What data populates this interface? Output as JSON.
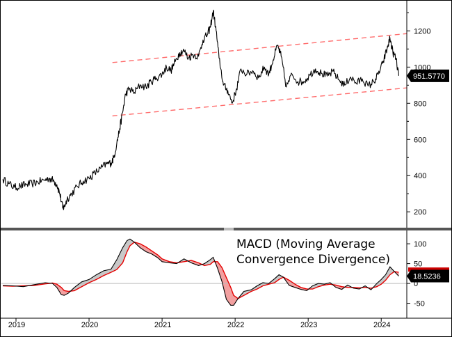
{
  "chart_data": {
    "type": "line",
    "x_range": [
      2018.8,
      2024.35
    ],
    "year_labels": [
      {
        "x": 2019.0,
        "label": "2019"
      },
      {
        "x": 2020.0,
        "label": "2020"
      },
      {
        "x": 2021.0,
        "label": "2021"
      },
      {
        "x": 2022.0,
        "label": "2022"
      },
      {
        "x": 2023.0,
        "label": "2023"
      },
      {
        "x": 2024.0,
        "label": "2024"
      }
    ],
    "price": {
      "ylim": [
        120,
        1340
      ],
      "yticks": [
        200,
        400,
        600,
        800,
        1000,
        1200
      ],
      "last_value_label": "951.5770",
      "last_value": 951.58,
      "series": [
        {
          "name": "Price",
          "points": [
            [
              2018.82,
              380
            ],
            [
              2018.9,
              355
            ],
            [
              2018.98,
              335
            ],
            [
              2019.06,
              342
            ],
            [
              2019.14,
              352
            ],
            [
              2019.22,
              355
            ],
            [
              2019.3,
              365
            ],
            [
              2019.38,
              375
            ],
            [
              2019.46,
              385
            ],
            [
              2019.52,
              370
            ],
            [
              2019.56,
              350
            ],
            [
              2019.6,
              300
            ],
            [
              2019.64,
              220
            ],
            [
              2019.66,
              228
            ],
            [
              2019.7,
              270
            ],
            [
              2019.76,
              300
            ],
            [
              2019.84,
              340
            ],
            [
              2019.92,
              370
            ],
            [
              2020.0,
              385
            ],
            [
              2020.08,
              415
            ],
            [
              2020.16,
              440
            ],
            [
              2020.24,
              465
            ],
            [
              2020.3,
              470
            ],
            [
              2020.34,
              500
            ],
            [
              2020.38,
              580
            ],
            [
              2020.42,
              660
            ],
            [
              2020.46,
              750
            ],
            [
              2020.5,
              850
            ],
            [
              2020.55,
              880
            ],
            [
              2020.62,
              860
            ],
            [
              2020.7,
              900
            ],
            [
              2020.78,
              890
            ],
            [
              2020.85,
              920
            ],
            [
              2020.92,
              940
            ],
            [
              2021.0,
              960
            ],
            [
              2021.06,
              1000
            ],
            [
              2021.12,
              980
            ],
            [
              2021.18,
              1030
            ],
            [
              2021.24,
              1080
            ],
            [
              2021.3,
              1090
            ],
            [
              2021.36,
              1050
            ],
            [
              2021.42,
              1070
            ],
            [
              2021.5,
              1060
            ],
            [
              2021.56,
              1150
            ],
            [
              2021.62,
              1180
            ],
            [
              2021.66,
              1220
            ],
            [
              2021.7,
              1310
            ],
            [
              2021.74,
              1200
            ],
            [
              2021.78,
              1050
            ],
            [
              2021.84,
              900
            ],
            [
              2021.9,
              870
            ],
            [
              2021.96,
              800
            ],
            [
              2022.02,
              880
            ],
            [
              2022.08,
              990
            ],
            [
              2022.16,
              960
            ],
            [
              2022.24,
              980
            ],
            [
              2022.32,
              940
            ],
            [
              2022.4,
              1000
            ],
            [
              2022.46,
              960
            ],
            [
              2022.52,
              1040
            ],
            [
              2022.58,
              1120
            ],
            [
              2022.63,
              1060
            ],
            [
              2022.7,
              890
            ],
            [
              2022.78,
              960
            ],
            [
              2022.86,
              920
            ],
            [
              2022.94,
              920
            ],
            [
              2023.02,
              955
            ],
            [
              2023.1,
              990
            ],
            [
              2023.18,
              965
            ],
            [
              2023.26,
              950
            ],
            [
              2023.34,
              975
            ],
            [
              2023.42,
              930
            ],
            [
              2023.5,
              900
            ],
            [
              2023.58,
              945
            ],
            [
              2023.66,
              910
            ],
            [
              2023.74,
              935
            ],
            [
              2023.82,
              895
            ],
            [
              2023.9,
              920
            ],
            [
              2023.96,
              960
            ],
            [
              2024.02,
              1020
            ],
            [
              2024.08,
              1100
            ],
            [
              2024.12,
              1160
            ],
            [
              2024.16,
              1080
            ],
            [
              2024.2,
              1050
            ],
            [
              2024.24,
              951.58
            ]
          ]
        },
        {
          "name": "Upper channel",
          "points": [
            [
              2020.32,
              1025
            ],
            [
              2024.35,
              1185
            ]
          ]
        },
        {
          "name": "Lower channel",
          "points": [
            [
              2020.32,
              730
            ],
            [
              2024.35,
              885
            ]
          ]
        }
      ]
    },
    "macd": {
      "title_line1": "MACD (Moving Average",
      "title_line2": "Convergence Divergence)",
      "ylim": [
        -70,
        130
      ],
      "yticks": [
        -50,
        0,
        50,
        100
      ],
      "last_value_label": "18.5236",
      "last_value": 18.52,
      "signal_last": 28.0,
      "series": [
        {
          "name": "MACD",
          "points": [
            [
              2018.82,
              -5
            ],
            [
              2018.95,
              -6
            ],
            [
              2019.1,
              -8
            ],
            [
              2019.25,
              -3
            ],
            [
              2019.4,
              2
            ],
            [
              2019.5,
              0
            ],
            [
              2019.56,
              -10
            ],
            [
              2019.62,
              -28
            ],
            [
              2019.66,
              -30
            ],
            [
              2019.72,
              -24
            ],
            [
              2019.8,
              -10
            ],
            [
              2019.9,
              4
            ],
            [
              2020.0,
              10
            ],
            [
              2020.1,
              22
            ],
            [
              2020.2,
              32
            ],
            [
              2020.3,
              36
            ],
            [
              2020.38,
              60
            ],
            [
              2020.46,
              90
            ],
            [
              2020.52,
              108
            ],
            [
              2020.56,
              112
            ],
            [
              2020.62,
              104
            ],
            [
              2020.7,
              90
            ],
            [
              2020.78,
              80
            ],
            [
              2020.86,
              74
            ],
            [
              2020.94,
              65
            ],
            [
              2021.0,
              55
            ],
            [
              2021.1,
              52
            ],
            [
              2021.2,
              50
            ],
            [
              2021.3,
              62
            ],
            [
              2021.4,
              52
            ],
            [
              2021.5,
              45
            ],
            [
              2021.58,
              50
            ],
            [
              2021.66,
              60
            ],
            [
              2021.7,
              66
            ],
            [
              2021.76,
              38
            ],
            [
              2021.82,
              5
            ],
            [
              2021.88,
              -40
            ],
            [
              2021.94,
              -55
            ],
            [
              2021.98,
              -55
            ],
            [
              2022.04,
              -38
            ],
            [
              2022.12,
              -20
            ],
            [
              2022.22,
              -16
            ],
            [
              2022.3,
              -6
            ],
            [
              2022.38,
              2
            ],
            [
              2022.46,
              0
            ],
            [
              2022.54,
              12
            ],
            [
              2022.6,
              22
            ],
            [
              2022.66,
              16
            ],
            [
              2022.74,
              -5
            ],
            [
              2022.82,
              -10
            ],
            [
              2022.9,
              -15
            ],
            [
              2022.98,
              -18
            ],
            [
              2023.06,
              -6
            ],
            [
              2023.14,
              0
            ],
            [
              2023.22,
              -2
            ],
            [
              2023.3,
              2
            ],
            [
              2023.38,
              -10
            ],
            [
              2023.46,
              -15
            ],
            [
              2023.54,
              -4
            ],
            [
              2023.62,
              -12
            ],
            [
              2023.7,
              -14
            ],
            [
              2023.78,
              -6
            ],
            [
              2023.86,
              -16
            ],
            [
              2023.94,
              0
            ],
            [
              2024.0,
              10
            ],
            [
              2024.06,
              22
            ],
            [
              2024.12,
              42
            ],
            [
              2024.18,
              30
            ],
            [
              2024.24,
              18.52
            ]
          ]
        },
        {
          "name": "Signal",
          "points": [
            [
              2018.82,
              -6
            ],
            [
              2018.95,
              -7
            ],
            [
              2019.1,
              -6
            ],
            [
              2019.25,
              -5
            ],
            [
              2019.4,
              -1
            ],
            [
              2019.5,
              1
            ],
            [
              2019.56,
              -2
            ],
            [
              2019.62,
              -10
            ],
            [
              2019.66,
              -18
            ],
            [
              2019.72,
              -20
            ],
            [
              2019.8,
              -18
            ],
            [
              2019.9,
              -8
            ],
            [
              2020.0,
              2
            ],
            [
              2020.1,
              10
            ],
            [
              2020.2,
              20
            ],
            [
              2020.3,
              28
            ],
            [
              2020.38,
              35
            ],
            [
              2020.46,
              52
            ],
            [
              2020.52,
              80
            ],
            [
              2020.56,
              95
            ],
            [
              2020.62,
              104
            ],
            [
              2020.7,
              100
            ],
            [
              2020.78,
              92
            ],
            [
              2020.86,
              82
            ],
            [
              2020.94,
              72
            ],
            [
              2021.0,
              62
            ],
            [
              2021.1,
              55
            ],
            [
              2021.2,
              52
            ],
            [
              2021.3,
              55
            ],
            [
              2021.4,
              58
            ],
            [
              2021.5,
              52
            ],
            [
              2021.58,
              45
            ],
            [
              2021.66,
              48
            ],
            [
              2021.7,
              55
            ],
            [
              2021.76,
              55
            ],
            [
              2021.82,
              40
            ],
            [
              2021.88,
              15
            ],
            [
              2021.94,
              -10
            ],
            [
              2021.98,
              -30
            ],
            [
              2022.04,
              -38
            ],
            [
              2022.12,
              -30
            ],
            [
              2022.22,
              -20
            ],
            [
              2022.3,
              -14
            ],
            [
              2022.38,
              -6
            ],
            [
              2022.46,
              -2
            ],
            [
              2022.54,
              2
            ],
            [
              2022.6,
              10
            ],
            [
              2022.66,
              16
            ],
            [
              2022.74,
              8
            ],
            [
              2022.82,
              -2
            ],
            [
              2022.9,
              -10
            ],
            [
              2022.98,
              -14
            ],
            [
              2023.06,
              -14
            ],
            [
              2023.14,
              -8
            ],
            [
              2023.22,
              -4
            ],
            [
              2023.3,
              -2
            ],
            [
              2023.38,
              -4
            ],
            [
              2023.46,
              -8
            ],
            [
              2023.54,
              -10
            ],
            [
              2023.62,
              -10
            ],
            [
              2023.7,
              -11
            ],
            [
              2023.78,
              -10
            ],
            [
              2023.86,
              -12
            ],
            [
              2023.94,
              -8
            ],
            [
              2024.0,
              -2
            ],
            [
              2024.06,
              8
            ],
            [
              2024.12,
              22
            ],
            [
              2024.18,
              30
            ],
            [
              2024.24,
              28
            ]
          ]
        }
      ]
    }
  },
  "colors": {
    "price_line": "#000000",
    "channel": "#ff6b6b",
    "macd_line": "#000000",
    "signal_line": "#e60000",
    "fill_above": "#c8c8c8",
    "fill_below": "#f2a0a0",
    "value_tag_bg": "#000000",
    "value_tag_text": "#ffffff",
    "signal_tag": "#cc0000",
    "zero_line": "#bbbbbb",
    "frame": "#000000",
    "divider": "#555555"
  }
}
